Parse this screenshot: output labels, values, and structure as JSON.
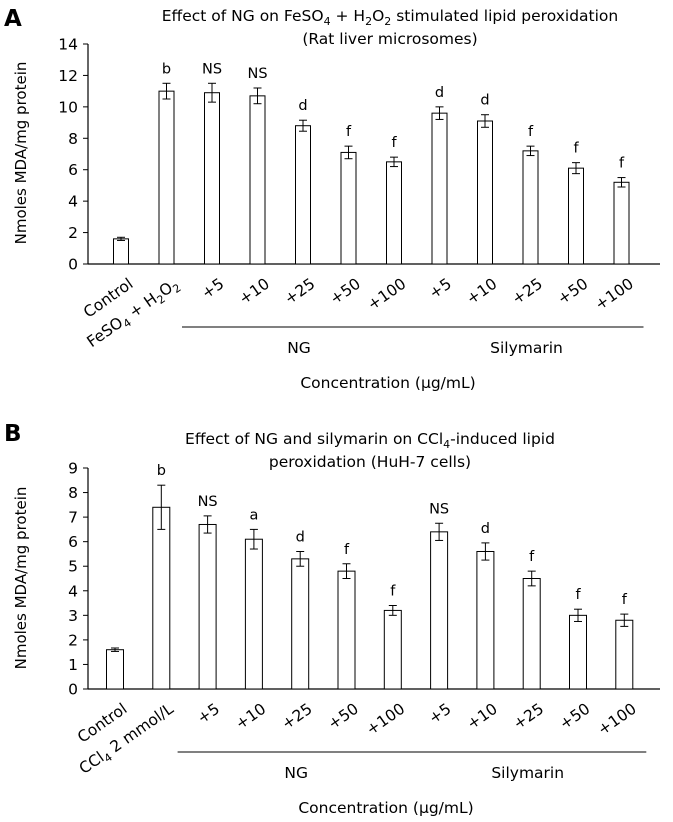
{
  "chart_data": [
    {
      "type": "bar",
      "panel_label": "A",
      "title_parts": [
        "Effect of NG on FeSO",
        "4",
        " + H",
        "2",
        "O",
        "2",
        " stimulated lipid peroxidation"
      ],
      "title_line2": "(Rat liver microsomes)",
      "ylabel": "Nmoles MDA/mg protein",
      "ylim": [
        0,
        14
      ],
      "yticks": [
        0,
        2,
        4,
        6,
        8,
        10,
        12,
        14
      ],
      "categories": [
        "Control",
        "FeSO4 + H2O2",
        "+5",
        "+10",
        "+25",
        "+50",
        "+100",
        "+5",
        "+10",
        "+25",
        "+50",
        "+100"
      ],
      "category_parts": [
        [
          "Control"
        ],
        [
          "FeSO",
          "4",
          " + H",
          "2",
          "O",
          "2"
        ],
        [
          "+5"
        ],
        [
          "+10"
        ],
        [
          "+25"
        ],
        [
          "+50"
        ],
        [
          "+100"
        ],
        [
          "+5"
        ],
        [
          "+10"
        ],
        [
          "+25"
        ],
        [
          "+50"
        ],
        [
          "+100"
        ]
      ],
      "values": [
        1.6,
        11.0,
        10.9,
        10.7,
        8.8,
        7.1,
        6.5,
        9.6,
        9.1,
        7.2,
        6.1,
        5.2
      ],
      "errors": [
        0.1,
        0.5,
        0.6,
        0.5,
        0.35,
        0.4,
        0.3,
        0.4,
        0.4,
        0.3,
        0.35,
        0.3
      ],
      "significance": [
        "",
        "b",
        "NS",
        "NS",
        "d",
        "f",
        "f",
        "d",
        "d",
        "f",
        "f",
        "f"
      ],
      "groups": [
        {
          "name": "NG",
          "from": 2,
          "to": 6
        },
        {
          "name": "Silymarin",
          "from": 7,
          "to": 11
        }
      ],
      "xlabel": "Concentration (μg/mL)"
    },
    {
      "type": "bar",
      "panel_label": "B",
      "title_parts": [
        "Effect of NG and silymarin on CCl",
        "4",
        "-induced lipid"
      ],
      "title_line2": "peroxidation (HuH-7 cells)",
      "ylabel": "Nmoles MDA/mg protein",
      "ylim": [
        0,
        9
      ],
      "yticks": [
        0,
        1,
        2,
        3,
        4,
        5,
        6,
        7,
        8,
        9
      ],
      "categories": [
        "Control",
        "CCl4 2 mmol/L",
        "+5",
        "+10",
        "+25",
        "+50",
        "+100",
        "+5",
        "+10",
        "+25",
        "+50",
        "+100"
      ],
      "category_parts": [
        [
          "Control"
        ],
        [
          "CCl",
          "4",
          " 2 mmol/L"
        ],
        [
          "+5"
        ],
        [
          "+10"
        ],
        [
          "+25"
        ],
        [
          "+50"
        ],
        [
          "+100"
        ],
        [
          "+5"
        ],
        [
          "+10"
        ],
        [
          "+25"
        ],
        [
          "+50"
        ],
        [
          "+100"
        ]
      ],
      "values": [
        1.6,
        7.4,
        6.7,
        6.1,
        5.3,
        4.8,
        3.2,
        6.4,
        5.6,
        4.5,
        3.0,
        2.8
      ],
      "errors": [
        0.07,
        0.9,
        0.35,
        0.4,
        0.3,
        0.3,
        0.2,
        0.35,
        0.35,
        0.3,
        0.25,
        0.25
      ],
      "significance": [
        "",
        "b",
        "NS",
        "a",
        "d",
        "f",
        "f",
        "NS",
        "d",
        "f",
        "f",
        "f"
      ],
      "groups": [
        {
          "name": "NG",
          "from": 2,
          "to": 6
        },
        {
          "name": "Silymarin",
          "from": 7,
          "to": 11
        }
      ],
      "xlabel": "Concentration (μg/mL)"
    }
  ]
}
